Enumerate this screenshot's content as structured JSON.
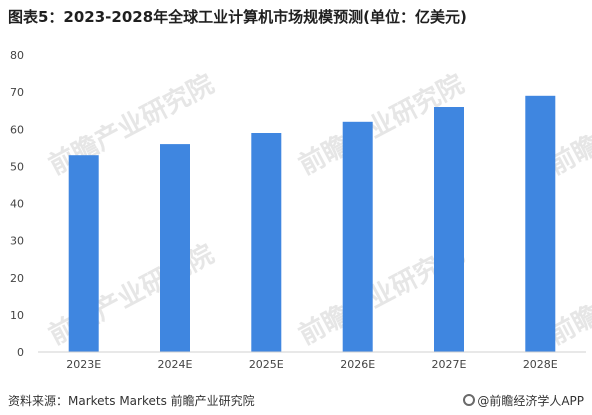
{
  "title": "图表5：2023-2028年全球工业计算机市场规模预测(单位：亿美元)",
  "source": "资料来源：Markets Markets 前瞻产业研究院",
  "brand": "@前瞻经济学人APP",
  "watermark": "前瞻产业研究院",
  "colors": {
    "bar": "#3f86e0",
    "axis": "#d0d0d0",
    "text": "#444444"
  },
  "chart_data": {
    "type": "bar",
    "categories": [
      "2023E",
      "2024E",
      "2025E",
      "2026E",
      "2027E",
      "2028E"
    ],
    "values": [
      53,
      56,
      59,
      62,
      66,
      69
    ],
    "ylim": [
      0,
      80
    ],
    "yticks": [
      0,
      10,
      20,
      30,
      40,
      50,
      60,
      70,
      80
    ],
    "grid": false,
    "xlabel": "",
    "ylabel": ""
  }
}
